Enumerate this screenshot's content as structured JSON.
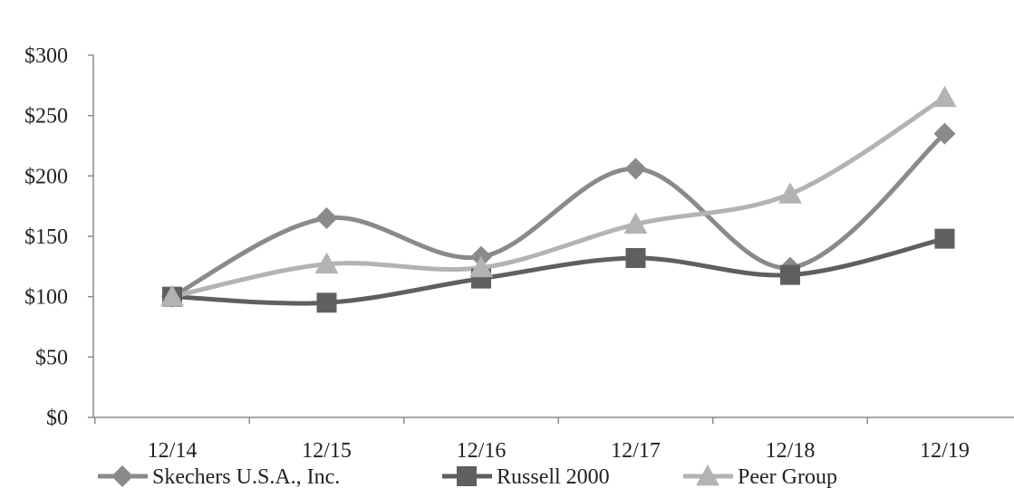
{
  "chart_data": {
    "type": "line",
    "categories": [
      "12/14",
      "12/15",
      "12/16",
      "12/17",
      "12/18",
      "12/19"
    ],
    "series": [
      {
        "name": "Skechers U.S.A., Inc.",
        "marker": "diamond",
        "color": "#8a8a8a",
        "values": [
          100,
          165,
          133,
          206,
          124,
          235
        ]
      },
      {
        "name": "Russell 2000",
        "marker": "square",
        "color": "#5f5f5f",
        "values": [
          100,
          95,
          115,
          132,
          118,
          148
        ]
      },
      {
        "name": "Peer Group",
        "marker": "triangle",
        "color": "#b3b3b3",
        "values": [
          100,
          127,
          124,
          160,
          185,
          265
        ]
      }
    ],
    "y_ticks": [
      "$0",
      "$50",
      "$100",
      "$150",
      "$200",
      "$250",
      "$300"
    ],
    "ylim": [
      0,
      300
    ],
    "grid": false,
    "legend_position": "bottom"
  }
}
